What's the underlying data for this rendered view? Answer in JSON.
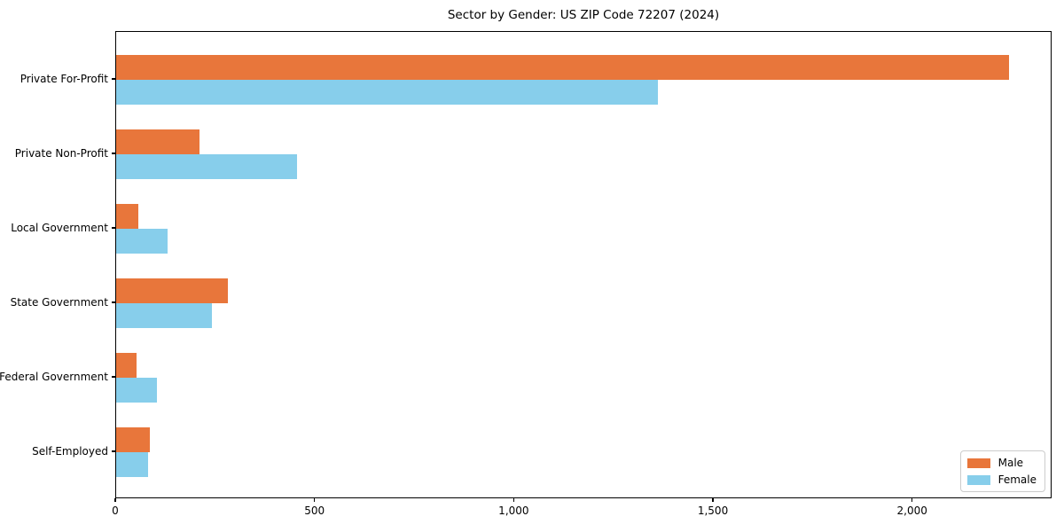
{
  "chart_data": {
    "type": "bar",
    "orientation": "horizontal",
    "title": "Sector by Gender: US ZIP Code 72207 (2024)",
    "categories": [
      "Private For-Profit",
      "Private Non-Profit",
      "Local Government",
      "State Government",
      "Federal Government",
      "Self-Employed"
    ],
    "series": [
      {
        "name": "Male",
        "color": "#E8763B",
        "values": [
          2240,
          210,
          55,
          280,
          52,
          85
        ]
      },
      {
        "name": "Female",
        "color": "#87CEEB",
        "values": [
          1360,
          455,
          130,
          240,
          103,
          80
        ]
      }
    ],
    "xlabel": "",
    "ylabel": "",
    "xlim": [
      0,
      2350
    ],
    "xticks": [
      0,
      500,
      1000,
      1500,
      2000
    ],
    "xtick_labels": [
      "0",
      "500",
      "1,000",
      "1,500",
      "2,000"
    ],
    "grid": false,
    "legend": {
      "position": "lower right",
      "entries": [
        "Male",
        "Female"
      ]
    }
  }
}
